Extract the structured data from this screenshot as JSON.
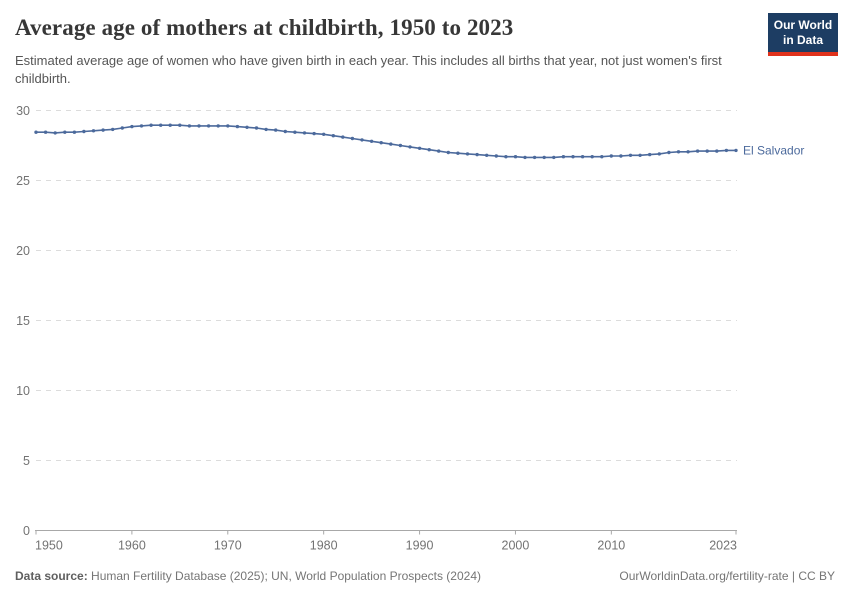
{
  "header": {
    "title": "Average age of mothers at childbirth, 1950 to 2023",
    "subtitle": "Estimated average age of women who have given birth in each year. This includes all births that year, not just women's first childbirth.",
    "logo": {
      "line1": "Our World",
      "line2": "in Data"
    }
  },
  "chart_data": {
    "type": "line",
    "title": "Average age of mothers at childbirth, 1950 to 2023",
    "xlabel": "",
    "ylabel": "",
    "ylim": [
      0,
      30
    ],
    "yticks": [
      0,
      5,
      10,
      15,
      20,
      25,
      30
    ],
    "xticks": [
      1950,
      1960,
      1970,
      1980,
      1990,
      2000,
      2010,
      2023
    ],
    "grid": "dashed-horizontal",
    "legend": "end-of-line-label",
    "x": [
      1950,
      1951,
      1952,
      1953,
      1954,
      1955,
      1956,
      1957,
      1958,
      1959,
      1960,
      1961,
      1962,
      1963,
      1964,
      1965,
      1966,
      1967,
      1968,
      1969,
      1970,
      1971,
      1972,
      1973,
      1974,
      1975,
      1976,
      1977,
      1978,
      1979,
      1980,
      1981,
      1982,
      1983,
      1984,
      1985,
      1986,
      1987,
      1988,
      1989,
      1990,
      1991,
      1992,
      1993,
      1994,
      1995,
      1996,
      1997,
      1998,
      1999,
      2000,
      2001,
      2002,
      2003,
      2004,
      2005,
      2006,
      2007,
      2008,
      2009,
      2010,
      2011,
      2012,
      2013,
      2014,
      2015,
      2016,
      2017,
      2018,
      2019,
      2020,
      2021,
      2022,
      2023
    ],
    "series": [
      {
        "name": "El Salvador",
        "color": "#4C6A9C",
        "values": [
          28.45,
          28.45,
          28.4,
          28.45,
          28.45,
          28.5,
          28.55,
          28.6,
          28.65,
          28.75,
          28.85,
          28.9,
          28.95,
          28.95,
          28.95,
          28.95,
          28.9,
          28.9,
          28.9,
          28.9,
          28.9,
          28.85,
          28.8,
          28.75,
          28.65,
          28.6,
          28.5,
          28.45,
          28.4,
          28.35,
          28.3,
          28.2,
          28.1,
          28.0,
          27.9,
          27.8,
          27.7,
          27.6,
          27.5,
          27.4,
          27.3,
          27.2,
          27.1,
          27.0,
          26.95,
          26.9,
          26.85,
          26.8,
          26.75,
          26.7,
          26.7,
          26.65,
          26.65,
          26.65,
          26.65,
          26.7,
          26.7,
          26.7,
          26.7,
          26.7,
          26.75,
          26.75,
          26.8,
          26.8,
          26.85,
          26.9,
          27.0,
          27.05,
          27.05,
          27.1,
          27.1,
          27.1,
          27.15,
          27.15
        ]
      }
    ]
  },
  "footer": {
    "source_label": "Data source:",
    "source_text": " Human Fertility Database (2025); UN, World Population Prospects (2024)",
    "note_right": "OurWorldinData.org/fertility-rate | CC BY"
  },
  "colors": {
    "line": "#4C6A9C",
    "grid": "#dcdcdc",
    "axis": "#a8a8a8",
    "tick_text": "#737373",
    "logo_bg": "#1d3d63",
    "logo_accent": "#e0321c"
  }
}
